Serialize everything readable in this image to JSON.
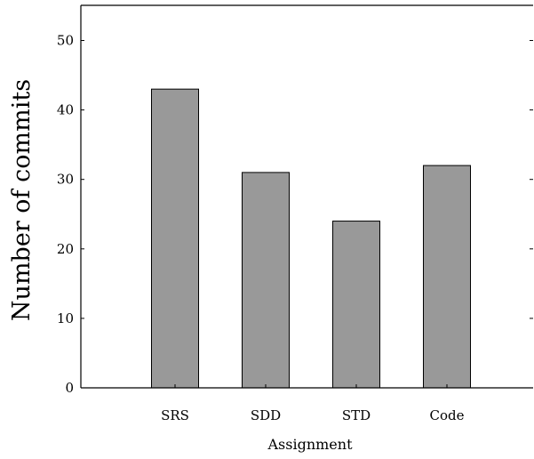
{
  "chart_data": {
    "type": "bar",
    "categories": [
      "SRS",
      "SDD",
      "STD",
      "Code"
    ],
    "values": [
      43,
      31,
      24,
      32
    ],
    "title": "",
    "xlabel": "Assignment",
    "ylabel": "Number of commits",
    "ylim": [
      0,
      55
    ],
    "yticks": [
      0,
      10,
      20,
      30,
      40,
      50
    ],
    "bar_color": "#999999",
    "bar_edge_color": "#000000",
    "grid": false,
    "legend": "none"
  }
}
